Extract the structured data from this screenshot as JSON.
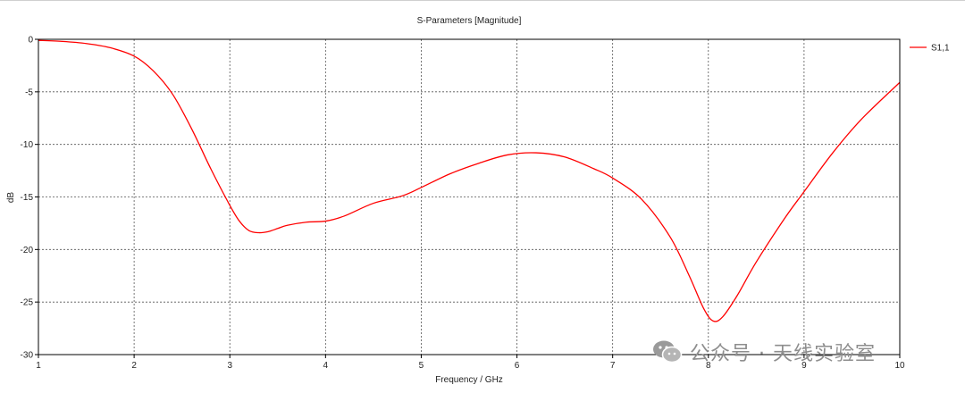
{
  "chart_data": {
    "type": "line",
    "title": "S-Parameters [Magnitude]",
    "xlabel": "Frequency / GHz",
    "ylabel": "dB",
    "xlim": [
      1,
      10
    ],
    "ylim": [
      -30,
      0
    ],
    "xticks": [
      "1",
      "2",
      "3",
      "4",
      "5",
      "6",
      "7",
      "8",
      "9",
      "10"
    ],
    "yticks": [
      "0",
      "-5",
      "-10",
      "-15",
      "-20",
      "-25",
      "-30"
    ],
    "grid": true,
    "legend_position": "right",
    "series": [
      {
        "name": "S1,1",
        "color": "#ff0000",
        "x": [
          1.0,
          1.25,
          1.5,
          1.75,
          2.0,
          2.2,
          2.4,
          2.6,
          2.8,
          3.0,
          3.1,
          3.2,
          3.3,
          3.4,
          3.5,
          3.6,
          3.8,
          4.0,
          4.2,
          4.5,
          4.8,
          5.0,
          5.3,
          5.6,
          5.9,
          6.2,
          6.5,
          6.8,
          7.0,
          7.3,
          7.6,
          7.8,
          7.95,
          8.05,
          8.15,
          8.3,
          8.5,
          8.8,
          9.0,
          9.3,
          9.6,
          10.0
        ],
        "y": [
          -0.1,
          -0.2,
          -0.4,
          -0.8,
          -1.6,
          -3.0,
          -5.2,
          -8.5,
          -12.3,
          -15.8,
          -17.3,
          -18.2,
          -18.4,
          -18.3,
          -18.0,
          -17.7,
          -17.4,
          -17.3,
          -16.8,
          -15.6,
          -14.9,
          -14.1,
          -12.8,
          -11.8,
          -11.0,
          -10.8,
          -11.2,
          -12.3,
          -13.2,
          -15.2,
          -18.8,
          -22.5,
          -25.6,
          -26.8,
          -26.4,
          -24.4,
          -21.2,
          -17.0,
          -14.5,
          -10.8,
          -7.6,
          -4.1
        ]
      }
    ]
  },
  "watermark": {
    "text": "公众号 · 天线实验室",
    "icon": "wechat-icon"
  }
}
